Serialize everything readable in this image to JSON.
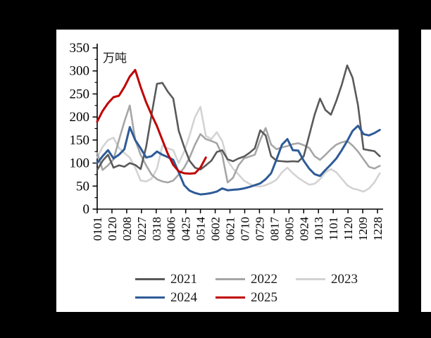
{
  "chart_data": {
    "type": "line",
    "title": "",
    "unit": "万吨",
    "xlabel": "",
    "ylabel": "万吨",
    "ylim": [
      0,
      350
    ],
    "y_major_tick_step": 50,
    "y_minor_tick_step": 25,
    "grid": false,
    "legend_position": "bottom",
    "x_tick_labels": [
      "0101",
      "0120",
      "0208",
      "0227",
      "0318",
      "0406",
      "0425",
      "0514",
      "0602",
      "0621",
      "0710",
      "0729",
      "0817",
      "0905",
      "0924",
      "1013",
      "1101",
      "1120",
      "1209",
      "1228"
    ],
    "x_tick_days": [
      0,
      19,
      38,
      57,
      76,
      95,
      114,
      133,
      152,
      171,
      190,
      209,
      228,
      247,
      266,
      285,
      304,
      323,
      342,
      361
    ],
    "x_day_range": [
      0,
      361
    ],
    "point_interval_days": 7,
    "series": [
      {
        "name": "2023",
        "color": "#d3d3d3",
        "start_day": 0,
        "values": [
          112,
          135,
          150,
          155,
          133,
          122,
          112,
          90,
          62,
          60,
          66,
          88,
          138,
          132,
          128,
          100,
          125,
          160,
          200,
          222,
          159,
          152,
          167,
          148,
          105,
          88,
          75,
          62,
          55,
          50,
          49,
          52,
          57,
          64,
          80,
          90,
          78,
          68,
          60,
          53,
          55,
          65,
          80,
          87,
          80,
          66,
          52,
          45,
          42,
          38,
          45,
          58,
          78
        ]
      },
      {
        "name": "2022",
        "color": "#a6a6a6",
        "start_day": 0,
        "values": [
          122,
          85,
          95,
          108,
          150,
          190,
          225,
          150,
          118,
          95,
          75,
          65,
          60,
          58,
          62,
          75,
          90,
          112,
          140,
          163,
          152,
          148,
          143,
          118,
          58,
          68,
          95,
          110,
          114,
          118,
          150,
          176,
          140,
          130,
          134,
          137,
          141,
          143,
          139,
          133,
          115,
          107,
          118,
          130,
          140,
          145,
          148,
          138,
          125,
          108,
          92,
          88,
          94
        ]
      },
      {
        "name": "2021",
        "color": "#595959",
        "start_day": 0,
        "values": [
          85,
          105,
          118,
          90,
          95,
          92,
          100,
          96,
          87,
          135,
          205,
          272,
          274,
          255,
          240,
          170,
          135,
          105,
          90,
          86,
          95,
          105,
          124,
          128,
          108,
          104,
          110,
          114,
          122,
          132,
          171,
          160,
          115,
          105,
          104,
          103,
          104,
          103,
          115,
          160,
          205,
          240,
          215,
          205,
          235,
          270,
          312,
          285,
          225,
          130,
          128,
          126,
          115
        ]
      },
      {
        "name": "2024",
        "color": "#2e5b97",
        "start_day": 0,
        "values": [
          100,
          115,
          128,
          110,
          118,
          130,
          178,
          150,
          132,
          112,
          115,
          125,
          118,
          113,
          107,
          80,
          52,
          40,
          35,
          32,
          33,
          35,
          38,
          45,
          41,
          42,
          43,
          45,
          48,
          52,
          56,
          65,
          78,
          108,
          140,
          152,
          128,
          127,
          105,
          88,
          76,
          72,
          85,
          97,
          110,
          128,
          148,
          170,
          181,
          163,
          160,
          165,
          172
        ]
      },
      {
        "name": "2025",
        "color": "#c00000",
        "start_day": 0,
        "values": [
          190,
          213,
          230,
          243,
          246,
          265,
          288,
          302,
          265,
          232,
          205,
          180,
          150,
          120,
          96,
          82,
          78,
          77,
          78,
          90,
          112
        ]
      }
    ]
  }
}
